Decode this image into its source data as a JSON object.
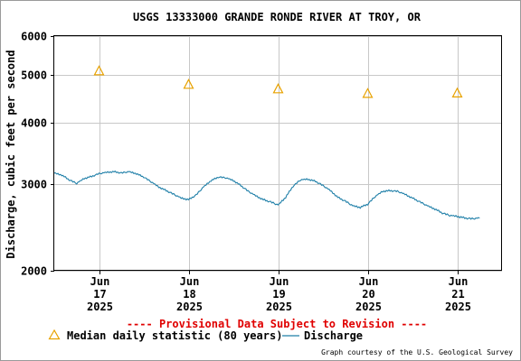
{
  "chart_data": {
    "type": "line",
    "title": "USGS 13333000 GRANDE RONDE RIVER AT TROY, OR",
    "ylabel": "Discharge, cubic feet per second",
    "xlabel": "",
    "y_scale": "log",
    "ylim": [
      2000,
      6000
    ],
    "xlim": [
      "2025-06-16 12:00",
      "2025-06-21 12:00"
    ],
    "y_ticks": [
      "2000",
      "3000",
      "4000",
      "5000",
      "6000"
    ],
    "x_ticks": [
      {
        "month": "Jun",
        "day": "17",
        "year": "2025",
        "date": "2025-06-17"
      },
      {
        "month": "Jun",
        "day": "18",
        "year": "2025",
        "date": "2025-06-18"
      },
      {
        "month": "Jun",
        "day": "19",
        "year": "2025",
        "date": "2025-06-19"
      },
      {
        "month": "Jun",
        "day": "20",
        "year": "2025",
        "date": "2025-06-20"
      },
      {
        "month": "Jun",
        "day": "21",
        "year": "2025",
        "date": "2025-06-21"
      }
    ],
    "grid": true,
    "series": [
      {
        "name": "Median daily statistic (80 years)",
        "type": "scatter",
        "marker": "triangle",
        "color": "#e8a200",
        "x": [
          "2025-06-17",
          "2025-06-18",
          "2025-06-19",
          "2025-06-20",
          "2025-06-21"
        ],
        "y": [
          5090,
          4780,
          4680,
          4580,
          4590
        ]
      },
      {
        "name": "Discharge",
        "type": "line",
        "color": "#1f7fa8",
        "x": [
          "2025-06-16 12:00",
          "2025-06-16 14:00",
          "2025-06-16 16:00",
          "2025-06-16 18:00",
          "2025-06-16 20:00",
          "2025-06-16 22:00",
          "2025-06-17 00:00",
          "2025-06-17 02:00",
          "2025-06-17 04:00",
          "2025-06-17 06:00",
          "2025-06-17 08:00",
          "2025-06-17 10:00",
          "2025-06-17 12:00",
          "2025-06-17 14:00",
          "2025-06-17 16:00",
          "2025-06-17 18:00",
          "2025-06-17 20:00",
          "2025-06-17 22:00",
          "2025-06-18 00:00",
          "2025-06-18 02:00",
          "2025-06-18 04:00",
          "2025-06-18 06:00",
          "2025-06-18 08:00",
          "2025-06-18 10:00",
          "2025-06-18 12:00",
          "2025-06-18 14:00",
          "2025-06-18 16:00",
          "2025-06-18 18:00",
          "2025-06-18 20:00",
          "2025-06-18 22:00",
          "2025-06-19 00:00",
          "2025-06-19 02:00",
          "2025-06-19 04:00",
          "2025-06-19 06:00",
          "2025-06-19 08:00",
          "2025-06-19 10:00",
          "2025-06-19 12:00",
          "2025-06-19 14:00",
          "2025-06-19 16:00",
          "2025-06-19 18:00",
          "2025-06-19 20:00",
          "2025-06-19 22:00",
          "2025-06-20 00:00",
          "2025-06-20 02:00",
          "2025-06-20 04:00",
          "2025-06-20 06:00",
          "2025-06-20 08:00",
          "2025-06-20 10:00",
          "2025-06-20 12:00",
          "2025-06-20 14:00",
          "2025-06-20 16:00",
          "2025-06-20 18:00",
          "2025-06-20 20:00",
          "2025-06-20 22:00",
          "2025-06-21 00:00",
          "2025-06-21 02:00",
          "2025-06-21 04:00",
          "2025-06-21 06:00"
        ],
        "y": [
          3160,
          3130,
          3060,
          3010,
          3080,
          3110,
          3150,
          3170,
          3180,
          3160,
          3180,
          3150,
          3100,
          3030,
          2960,
          2910,
          2860,
          2810,
          2790,
          2850,
          2960,
          3050,
          3100,
          3090,
          3050,
          2980,
          2900,
          2840,
          2790,
          2760,
          2720,
          2820,
          2970,
          3060,
          3070,
          3040,
          2980,
          2910,
          2820,
          2770,
          2710,
          2690,
          2730,
          2830,
          2900,
          2910,
          2900,
          2860,
          2810,
          2760,
          2710,
          2670,
          2620,
          2590,
          2580,
          2560,
          2550,
          2560
        ]
      }
    ]
  },
  "footer": {
    "provisional": "---- Provisional Data Subject to Revision ----",
    "credit": "Graph courtesy of the U.S. Geological Survey"
  },
  "legend": {
    "median_label": "Median daily statistic (80 years)",
    "discharge_label": "Discharge"
  },
  "colors": {
    "median": "#e8a200",
    "discharge": "#1f7fa8",
    "provisional": "#e00000",
    "grid": "#c8c8c8"
  }
}
